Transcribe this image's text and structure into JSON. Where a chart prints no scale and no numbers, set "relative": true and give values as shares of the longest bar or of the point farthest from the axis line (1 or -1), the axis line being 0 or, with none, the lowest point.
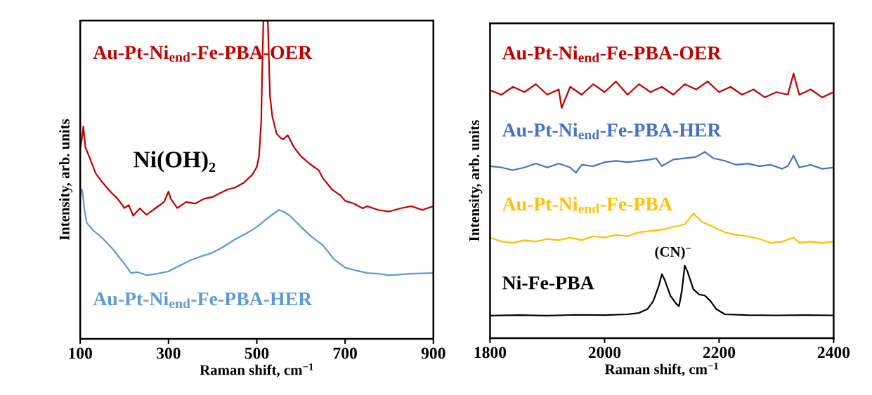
{
  "chart_data": [
    {
      "type": "line",
      "xlabel": "Raman shift, cm$^{−1}$",
      "ylabel": "Intensity, arb. units",
      "relative": true,
      "xlim": [
        100,
        900
      ],
      "xticks": [
        100,
        300,
        500,
        700,
        900
      ],
      "tick_labels": "x",
      "legend": false,
      "annotations": [
        "Ni(OH)₂"
      ],
      "series": [
        {
          "name": "Au-Pt-Ni$_{end}$-Fe-PBA-OER",
          "color": "#c00000",
          "x": [
            100,
            104,
            107,
            112,
            120,
            135,
            150,
            170,
            185,
            200,
            210,
            220,
            235,
            250,
            260,
            275,
            290,
            300,
            305,
            320,
            340,
            360,
            380,
            400,
            420,
            435,
            450,
            470,
            490,
            500,
            505,
            510,
            512,
            515,
            525,
            528,
            530,
            535,
            545,
            555,
            560,
            570,
            585,
            600,
            620,
            640,
            650,
            670,
            690,
            700,
            720,
            740,
            750,
            775,
            800,
            825,
            850,
            875,
            900
          ],
          "values": [
            0.597,
            0.63,
            0.667,
            0.6,
            0.574,
            0.52,
            0.492,
            0.46,
            0.44,
            0.411,
            0.42,
            0.387,
            0.41,
            0.39,
            0.4,
            0.415,
            0.43,
            0.463,
            0.44,
            0.411,
            0.43,
            0.425,
            0.44,
            0.446,
            0.46,
            0.47,
            0.475,
            0.49,
            0.516,
            0.54,
            0.574,
            0.68,
            0.83,
            1.0,
            1.0,
            0.85,
            0.76,
            0.7,
            0.644,
            0.63,
            0.627,
            0.64,
            0.6,
            0.574,
            0.55,
            0.53,
            0.504,
            0.47,
            0.45,
            0.434,
            0.425,
            0.41,
            0.417,
            0.405,
            0.4,
            0.41,
            0.417,
            0.405,
            0.417
          ]
        },
        {
          "name": "Au-Pt-Ni$_{end}$-Fe-PBA-HER",
          "color": "#5b9bd5",
          "x": [
            100,
            103,
            105,
            110,
            115,
            130,
            150,
            175,
            200,
            215,
            230,
            250,
            275,
            300,
            325,
            350,
            375,
            400,
            425,
            450,
            475,
            500,
            525,
            550,
            560,
            575,
            600,
            625,
            650,
            675,
            700,
            725,
            750,
            775,
            800,
            850,
            900
          ],
          "values": [
            0.446,
            0.47,
            0.463,
            0.4,
            0.364,
            0.34,
            0.317,
            0.28,
            0.236,
            0.207,
            0.21,
            0.2,
            0.205,
            0.212,
            0.23,
            0.247,
            0.26,
            0.271,
            0.29,
            0.312,
            0.33,
            0.352,
            0.38,
            0.405,
            0.4,
            0.387,
            0.352,
            0.32,
            0.294,
            0.25,
            0.224,
            0.215,
            0.207,
            0.205,
            0.2,
            0.205,
            0.207
          ]
        }
      ]
    },
    {
      "type": "line",
      "xlabel": "Raman shift, cm$^{−1}$",
      "ylabel": "Intensity, arb. units",
      "relative": true,
      "xlim": [
        1800,
        2400
      ],
      "xticks": [
        1800,
        2000,
        2200,
        2400
      ],
      "tick_labels": "x",
      "legend": false,
      "annotations": [
        "(CN)$^{−}$"
      ],
      "series": [
        {
          "name": "Au-Pt-Ni$_{end}$-Fe-PBA-OER",
          "color": "#c00000",
          "x": [
            1800,
            1820,
            1840,
            1860,
            1880,
            1900,
            1920,
            1925,
            1940,
            1960,
            1980,
            2000,
            2020,
            2040,
            2060,
            2080,
            2100,
            2120,
            2140,
            2160,
            2180,
            2200,
            2220,
            2240,
            2260,
            2280,
            2300,
            2320,
            2330,
            2340,
            2360,
            2380,
            2400
          ],
          "values": [
            0.937,
            0.92,
            0.95,
            0.93,
            0.96,
            0.92,
            0.94,
            0.87,
            0.95,
            0.92,
            0.96,
            0.93,
            0.97,
            0.92,
            0.96,
            0.93,
            0.95,
            0.92,
            0.96,
            0.94,
            0.97,
            0.93,
            0.95,
            0.92,
            0.94,
            0.91,
            0.93,
            0.92,
            1.0,
            0.92,
            0.94,
            0.91,
            0.93
          ]
        },
        {
          "name": "Au-Pt-Ni$_{end}$-Fe-PBA-HER",
          "color": "#4472c4",
          "x": [
            1800,
            1820,
            1840,
            1860,
            1880,
            1900,
            1920,
            1940,
            1950,
            1960,
            1980,
            2000,
            2020,
            2040,
            2060,
            2080,
            2090,
            2100,
            2120,
            2140,
            2160,
            2175,
            2190,
            2210,
            2230,
            2250,
            2270,
            2290,
            2310,
            2320,
            2330,
            2340,
            2360,
            2380,
            2400
          ],
          "values": [
            0.65,
            0.645,
            0.635,
            0.645,
            0.66,
            0.645,
            0.66,
            0.645,
            0.625,
            0.655,
            0.65,
            0.665,
            0.67,
            0.665,
            0.67,
            0.675,
            0.68,
            0.65,
            0.675,
            0.68,
            0.685,
            0.704,
            0.68,
            0.67,
            0.655,
            0.66,
            0.65,
            0.655,
            0.64,
            0.65,
            0.69,
            0.645,
            0.655,
            0.64,
            0.645
          ]
        },
        {
          "name": "Au-Pt-Ni$_{end}$-Fe-PBA",
          "color": "#ffc000",
          "x": [
            1800,
            1820,
            1840,
            1860,
            1880,
            1900,
            1920,
            1940,
            1960,
            1980,
            2000,
            2020,
            2040,
            2060,
            2080,
            2100,
            2120,
            2140,
            2155,
            2170,
            2190,
            2210,
            2230,
            2250,
            2270,
            2290,
            2310,
            2330,
            2340,
            2360,
            2380,
            2400
          ],
          "values": [
            0.38,
            0.365,
            0.36,
            0.37,
            0.365,
            0.375,
            0.37,
            0.38,
            0.37,
            0.385,
            0.38,
            0.39,
            0.385,
            0.4,
            0.405,
            0.41,
            0.42,
            0.43,
            0.471,
            0.44,
            0.42,
            0.4,
            0.39,
            0.385,
            0.375,
            0.36,
            0.365,
            0.38,
            0.36,
            0.365,
            0.36,
            0.365
          ]
        },
        {
          "name": "Ni-Fe-PBA",
          "color": "#000000",
          "x": [
            1800,
            1850,
            1900,
            1950,
            2000,
            2040,
            2060,
            2075,
            2085,
            2095,
            2100,
            2105,
            2115,
            2125,
            2130,
            2135,
            2140,
            2145,
            2155,
            2165,
            2175,
            2185,
            2195,
            2210,
            2250,
            2300,
            2350,
            2400
          ],
          "values": [
            0.085,
            0.087,
            0.085,
            0.088,
            0.087,
            0.09,
            0.095,
            0.11,
            0.14,
            0.2,
            0.242,
            0.22,
            0.16,
            0.13,
            0.121,
            0.18,
            0.274,
            0.25,
            0.185,
            0.165,
            0.161,
            0.14,
            0.11,
            0.09,
            0.087,
            0.086,
            0.087,
            0.086
          ]
        }
      ]
    }
  ]
}
